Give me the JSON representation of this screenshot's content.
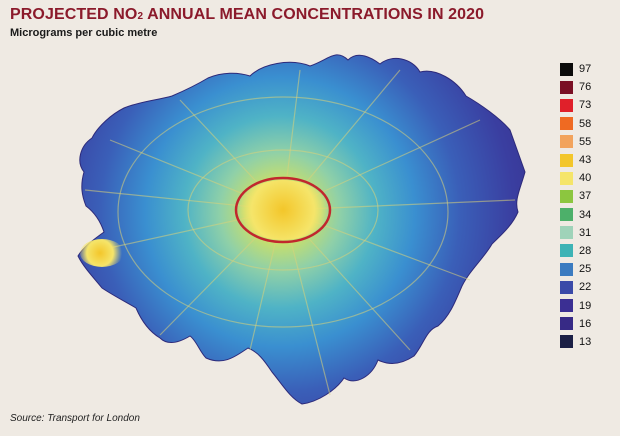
{
  "title": {
    "prefix": "PROJECTED NO",
    "subscript": "2",
    "suffix": " ANNUAL MEAN CONCENTRATIONS IN 2020"
  },
  "subtitle": "Micrograms per cubic metre",
  "source": "Source: Transport for London",
  "legend": [
    {
      "label": "97",
      "color": "#0b0b0b"
    },
    {
      "label": "76",
      "color": "#7a0f24"
    },
    {
      "label": "73",
      "color": "#e0202a"
    },
    {
      "label": "58",
      "color": "#ef6a22"
    },
    {
      "label": "55",
      "color": "#f2a35c"
    },
    {
      "label": "43",
      "color": "#f3c62a"
    },
    {
      "label": "40",
      "color": "#f5e56a"
    },
    {
      "label": "37",
      "color": "#8cc63f"
    },
    {
      "label": "34",
      "color": "#4db06a"
    },
    {
      "label": "31",
      "color": "#9fd3b9"
    },
    {
      "label": "28",
      "color": "#3db3b5"
    },
    {
      "label": "25",
      "color": "#3b7bc0"
    },
    {
      "label": "22",
      "color": "#3b4aa8"
    },
    {
      "label": "19",
      "color": "#3b2f93"
    },
    {
      "label": "16",
      "color": "#372a86"
    },
    {
      "label": "13",
      "color": "#1b1f45"
    }
  ]
}
